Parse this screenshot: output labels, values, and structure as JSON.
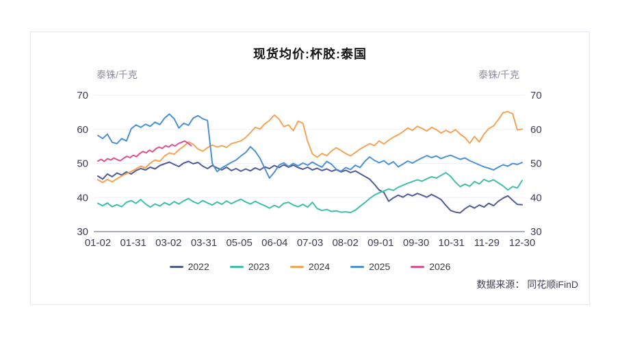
{
  "chart": {
    "source_label": "数据来源： 同花顺iFinD"
  },
  "chart_data": {
    "type": "line",
    "title": "现货均价:杯胶:泰国",
    "ylabel_left": "泰铢/千克",
    "ylabel_right": "泰铢/千克",
    "xlabel": "",
    "ylim": [
      30,
      70
    ],
    "y_ticks": [
      30,
      40,
      50,
      60,
      70
    ],
    "x_tick_labels": [
      "01-02",
      "01-31",
      "03-02",
      "03-31",
      "05-05",
      "06-04",
      "07-03",
      "08-02",
      "09-01",
      "09-30",
      "10-31",
      "11-29",
      "12-30"
    ],
    "grid": true,
    "legend_position": "bottom",
    "axis_color": "#a8adbd",
    "grid_color": "#ededf5",
    "tick_text_color": "#3b3b52",
    "series": [
      {
        "name": "2022",
        "color": "#4e5b96",
        "t_start": 0,
        "t_end": 1,
        "values": [
          46.3,
          45.4,
          46.9,
          46.1,
          47.2,
          46.6,
          47.5,
          46.9,
          47.9,
          48.5,
          48.1,
          48.9,
          48.4,
          49.4,
          49.9,
          50.4,
          49.7,
          49.1,
          50.1,
          50.6,
          49.9,
          50.3,
          49.2,
          48.5,
          49.4,
          48.7,
          48.1,
          48.9,
          47.9,
          48.5,
          47.7,
          48.4,
          47.8,
          48.7,
          48.1,
          49.0,
          48.5,
          49.4,
          48.8,
          49.6,
          48.9,
          49.5,
          48.8,
          48.3,
          48.9,
          48.1,
          48.6,
          47.9,
          48.4,
          47.7,
          48.2,
          47.5,
          48.0,
          47.3,
          47.8,
          47.0,
          46.2,
          45.4,
          43.9,
          42.2,
          41.5,
          38.9,
          39.9,
          40.7,
          40.1,
          41.0,
          40.5,
          41.2,
          40.7,
          40.1,
          40.9,
          40.2,
          39.4,
          37.7,
          36.2,
          35.7,
          35.5,
          36.7,
          37.6,
          36.9,
          37.8,
          37.2,
          38.3,
          37.6,
          38.9,
          39.8,
          40.5,
          39.2,
          38.0,
          37.9
        ]
      },
      {
        "name": "2023",
        "color": "#3fbfa6",
        "t_start": 0,
        "t_end": 1,
        "values": [
          38.3,
          37.6,
          38.4,
          37.3,
          37.9,
          37.3,
          38.6,
          39.1,
          38.3,
          39.4,
          38.1,
          37.2,
          38.1,
          37.5,
          38.5,
          37.8,
          38.8,
          38.1,
          39.0,
          39.7,
          38.8,
          38.2,
          39.1,
          38.4,
          37.8,
          38.7,
          38.0,
          39.0,
          38.2,
          38.9,
          39.5,
          38.7,
          38.1,
          38.9,
          38.2,
          37.6,
          36.9,
          37.7,
          37.1,
          38.3,
          38.6,
          37.8,
          37.3,
          38.0,
          37.2,
          38.6,
          36.8,
          36.2,
          36.5,
          35.9,
          36.1,
          35.7,
          35.8,
          35.6,
          36.3,
          37.4,
          38.5,
          39.7,
          40.7,
          41.4,
          41.9,
          42.5,
          42.1,
          43.0,
          43.6,
          44.2,
          44.7,
          45.2,
          44.8,
          45.5,
          46.1,
          45.7,
          46.5,
          47.3,
          46.2,
          44.5,
          43.2,
          43.9,
          43.3,
          44.7,
          44.0,
          45.3,
          44.7,
          45.2,
          44.3,
          43.4,
          42.2,
          43.2,
          42.8,
          45.0
        ]
      },
      {
        "name": "2024",
        "color": "#f5a355",
        "t_start": 0,
        "t_end": 1,
        "values": [
          45.2,
          44.4,
          45.3,
          44.6,
          45.5,
          46.3,
          47.0,
          47.6,
          48.4,
          49.2,
          48.7,
          50.1,
          51.0,
          50.6,
          52.2,
          53.1,
          52.7,
          54.0,
          55.0,
          56.3,
          55.6,
          54.2,
          53.6,
          54.6,
          55.4,
          54.8,
          55.2,
          54.7,
          55.8,
          56.2,
          56.6,
          57.6,
          59.0,
          60.6,
          60.1,
          61.6,
          62.6,
          64.2,
          63.0,
          60.8,
          61.3,
          59.6,
          62.4,
          61.8,
          56.5,
          52.8,
          51.8,
          52.9,
          52.3,
          53.6,
          54.6,
          53.8,
          52.9,
          52.2,
          53.2,
          54.2,
          55.0,
          55.8,
          55.2,
          56.6,
          55.7,
          56.8,
          57.7,
          58.4,
          59.3,
          60.4,
          59.7,
          60.9,
          60.3,
          59.5,
          60.6,
          59.9,
          58.9,
          59.7,
          59.0,
          59.9,
          58.6,
          57.6,
          55.9,
          57.9,
          56.3,
          58.6,
          60.2,
          61.0,
          62.8,
          64.9,
          65.2,
          64.6,
          59.8,
          60.1
        ]
      },
      {
        "name": "2025",
        "color": "#4a90d5",
        "t_start": 0,
        "t_end": 1,
        "values": [
          58.2,
          57.3,
          58.6,
          56.2,
          55.8,
          57.3,
          56.6,
          60.2,
          61.3,
          60.6,
          61.5,
          60.9,
          62.1,
          61.4,
          63.3,
          64.5,
          63.1,
          60.4,
          61.8,
          61.2,
          63.3,
          64.0,
          63.1,
          62.6,
          50.0,
          47.6,
          48.7,
          49.5,
          50.3,
          51.0,
          52.2,
          53.2,
          54.9,
          53.6,
          51.5,
          48.6,
          45.7,
          47.4,
          49.5,
          50.2,
          49.1,
          50.0,
          49.3,
          50.1,
          49.5,
          50.4,
          49.6,
          48.9,
          50.6,
          49.8,
          48.3,
          47.7,
          48.8,
          48.2,
          49.5,
          48.8,
          50.6,
          51.9,
          50.9,
          50.2,
          50.8,
          49.7,
          50.5,
          49.0,
          49.8,
          50.7,
          50.1,
          50.9,
          51.6,
          52.3,
          51.7,
          52.2,
          51.4,
          52.0,
          52.4,
          51.8,
          51.2,
          51.6,
          50.8,
          50.2,
          49.6,
          49.0,
          48.6,
          48.1,
          48.9,
          49.6,
          49.2,
          50.0,
          49.7,
          50.3
        ]
      },
      {
        "name": "2026",
        "color": "#de5190",
        "t_start": 0,
        "t_end": 0.22,
        "values": [
          50.7,
          51.2,
          50.6,
          51.4,
          51.0,
          51.6,
          51.1,
          50.8,
          51.5,
          52.1,
          51.7,
          52.4,
          52.0,
          52.9,
          53.5,
          53.1,
          53.9,
          53.4,
          54.3,
          54.8,
          54.4,
          55.2,
          54.8,
          55.5,
          55.1,
          55.8,
          56.2,
          56.6,
          55.9,
          55.2
        ]
      }
    ]
  }
}
